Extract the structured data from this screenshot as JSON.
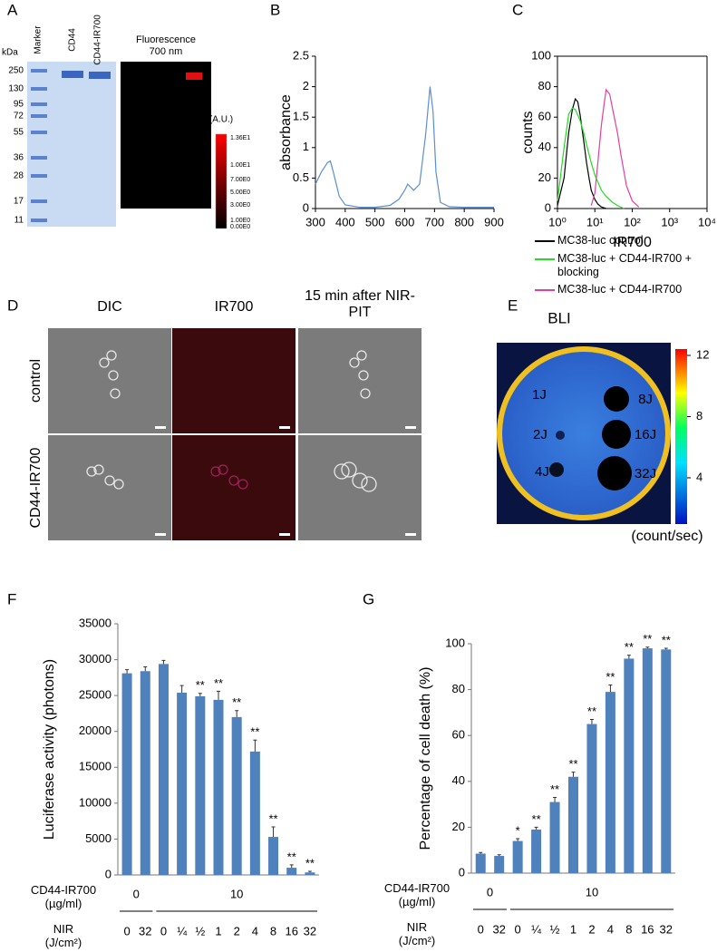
{
  "panel_a": {
    "letter": "A",
    "unit_label": "kDa",
    "lanes": [
      "Marker",
      "CD44",
      "CD44-IR700"
    ],
    "fluorescence_title": "Fluorescence 700 nm",
    "marker_sizes": [
      "250",
      "130",
      "95",
      "72",
      "55",
      "36",
      "28",
      "17",
      "11"
    ],
    "colorbar_title": "(A.U.)",
    "colorbar_labels": [
      "1.36E1",
      "1.00E1",
      "7.00E0",
      "5.00E0",
      "3.00E0",
      "1.00E0",
      "0.00E0"
    ]
  },
  "panel_d": {
    "letter": "D",
    "columns": [
      "DIC",
      "IR700",
      "15 min after NIR-PIT"
    ],
    "rows": [
      "control",
      "CD44-IR700"
    ]
  },
  "panel_e": {
    "letter": "E",
    "title": "BLI",
    "well_labels": [
      "1J",
      "2J",
      "4J",
      "8J",
      "16J",
      "32J"
    ],
    "colorbar_ticks": [
      12,
      8,
      4
    ],
    "colorbar_unit": "(count/sec)"
  },
  "chart_data": [
    {
      "type": "line",
      "letter": "B",
      "y_label": "absorbance",
      "x": [
        300,
        320,
        340,
        350,
        360,
        380,
        400,
        450,
        500,
        550,
        580,
        600,
        610,
        620,
        630,
        650,
        670,
        685,
        695,
        705,
        720,
        750,
        800,
        900
      ],
      "series": [
        {
          "name": "absorbance",
          "color": "#5b8fd0",
          "values": [
            0.4,
            0.6,
            0.75,
            0.78,
            0.6,
            0.2,
            0.06,
            0.02,
            0.02,
            0.05,
            0.15,
            0.3,
            0.4,
            0.35,
            0.3,
            0.4,
            1.2,
            2.0,
            1.6,
            0.6,
            0.1,
            0.03,
            0.02,
            0.02
          ]
        }
      ],
      "xlim": [
        300,
        900
      ],
      "xticks": [
        300,
        400,
        500,
        600,
        700,
        800,
        900
      ],
      "ylim": [
        0,
        2.5
      ],
      "yticks": [
        0,
        0.5,
        1,
        1.5,
        2,
        2.5
      ]
    },
    {
      "type": "histogram-line",
      "letter": "C",
      "y_label": "counts",
      "x_label": "IR700",
      "log_x": true,
      "series": [
        {
          "name": "MC38-luc control",
          "color": "#000000",
          "x": [
            1,
            1.5,
            2,
            2.5,
            3,
            3.5,
            4,
            5,
            6,
            7,
            8,
            10,
            12,
            15,
            20
          ],
          "values": [
            2,
            20,
            50,
            65,
            72,
            70,
            62,
            45,
            30,
            20,
            12,
            6,
            3,
            1,
            0
          ]
        },
        {
          "name": "MC38-luc + CD44-IR700 + blocking",
          "color": "#22dd22",
          "x": [
            1,
            1.5,
            2,
            2.5,
            3,
            4,
            5,
            6,
            8,
            10,
            15,
            20,
            30,
            40,
            60
          ],
          "values": [
            5,
            40,
            62,
            66,
            65,
            58,
            50,
            42,
            30,
            22,
            12,
            8,
            4,
            2,
            0
          ]
        },
        {
          "name": "MC38-luc + CD44-IR700",
          "color": "#e040a0",
          "x": [
            8,
            10,
            12,
            15,
            18,
            20,
            25,
            30,
            40,
            50,
            70,
            100,
            150
          ],
          "values": [
            2,
            10,
            30,
            55,
            70,
            78,
            75,
            65,
            50,
            35,
            15,
            5,
            1
          ]
        }
      ],
      "xlim": [
        1,
        10000
      ],
      "xticks": [
        {
          "value": 1,
          "label": "10⁰"
        },
        {
          "value": 10,
          "label": "10¹"
        },
        {
          "value": 100,
          "label": "10²"
        },
        {
          "value": 1000,
          "label": "10³"
        },
        {
          "value": 10000,
          "label": "10⁴"
        }
      ],
      "ylim": [
        0,
        100
      ],
      "yticks": [
        0,
        20,
        40,
        60,
        80,
        100
      ]
    },
    {
      "type": "bar",
      "letter": "F",
      "y_label": "Luciferase activity (photons)",
      "color": "#4f81bd",
      "dose_label": "CD44-IR700 (µg/ml)",
      "dose_groups": [
        "0",
        "10"
      ],
      "nir_label": "NIR (J/cm²)",
      "categories": [
        "0",
        "32",
        "0",
        "¼",
        "½",
        "1",
        "2",
        "4",
        "8",
        "16",
        "32"
      ],
      "values": [
        28100,
        28400,
        29400,
        25400,
        24900,
        24400,
        22000,
        17200,
        5300,
        1000,
        350
      ],
      "errors": [
        500,
        600,
        500,
        1000,
        400,
        1200,
        900,
        1600,
        1400,
        400,
        150
      ],
      "significance": [
        null,
        null,
        null,
        null,
        "**",
        "**",
        "**",
        "**",
        "**",
        "**",
        "**"
      ],
      "ylim": [
        0,
        35000
      ],
      "yticks": [
        0,
        5000,
        10000,
        15000,
        20000,
        25000,
        30000,
        35000
      ]
    },
    {
      "type": "bar",
      "letter": "G",
      "y_label": "Percentage of cell death (%)",
      "color": "#4f81bd",
      "dose_label": "CD44-IR700 (µg/ml)",
      "dose_groups": [
        "0",
        "10"
      ],
      "nir_label": "NIR (J/cm²)",
      "categories": [
        "0",
        "32",
        "0",
        "¼",
        "½",
        "1",
        "2",
        "4",
        "8",
        "16",
        "32"
      ],
      "values": [
        8.5,
        7.5,
        14,
        19,
        31,
        42,
        65,
        79,
        93.5,
        98,
        97.5
      ],
      "errors": [
        0.5,
        0.5,
        1,
        1,
        2,
        2,
        2,
        3,
        1.5,
        0.5,
        0.5
      ],
      "significance": [
        null,
        null,
        "*",
        "**",
        "**",
        "**",
        "**",
        "**",
        "**",
        "**",
        "**"
      ],
      "ylim": [
        0,
        100
      ],
      "yticks": [
        0,
        20,
        40,
        60,
        80,
        100
      ]
    }
  ]
}
